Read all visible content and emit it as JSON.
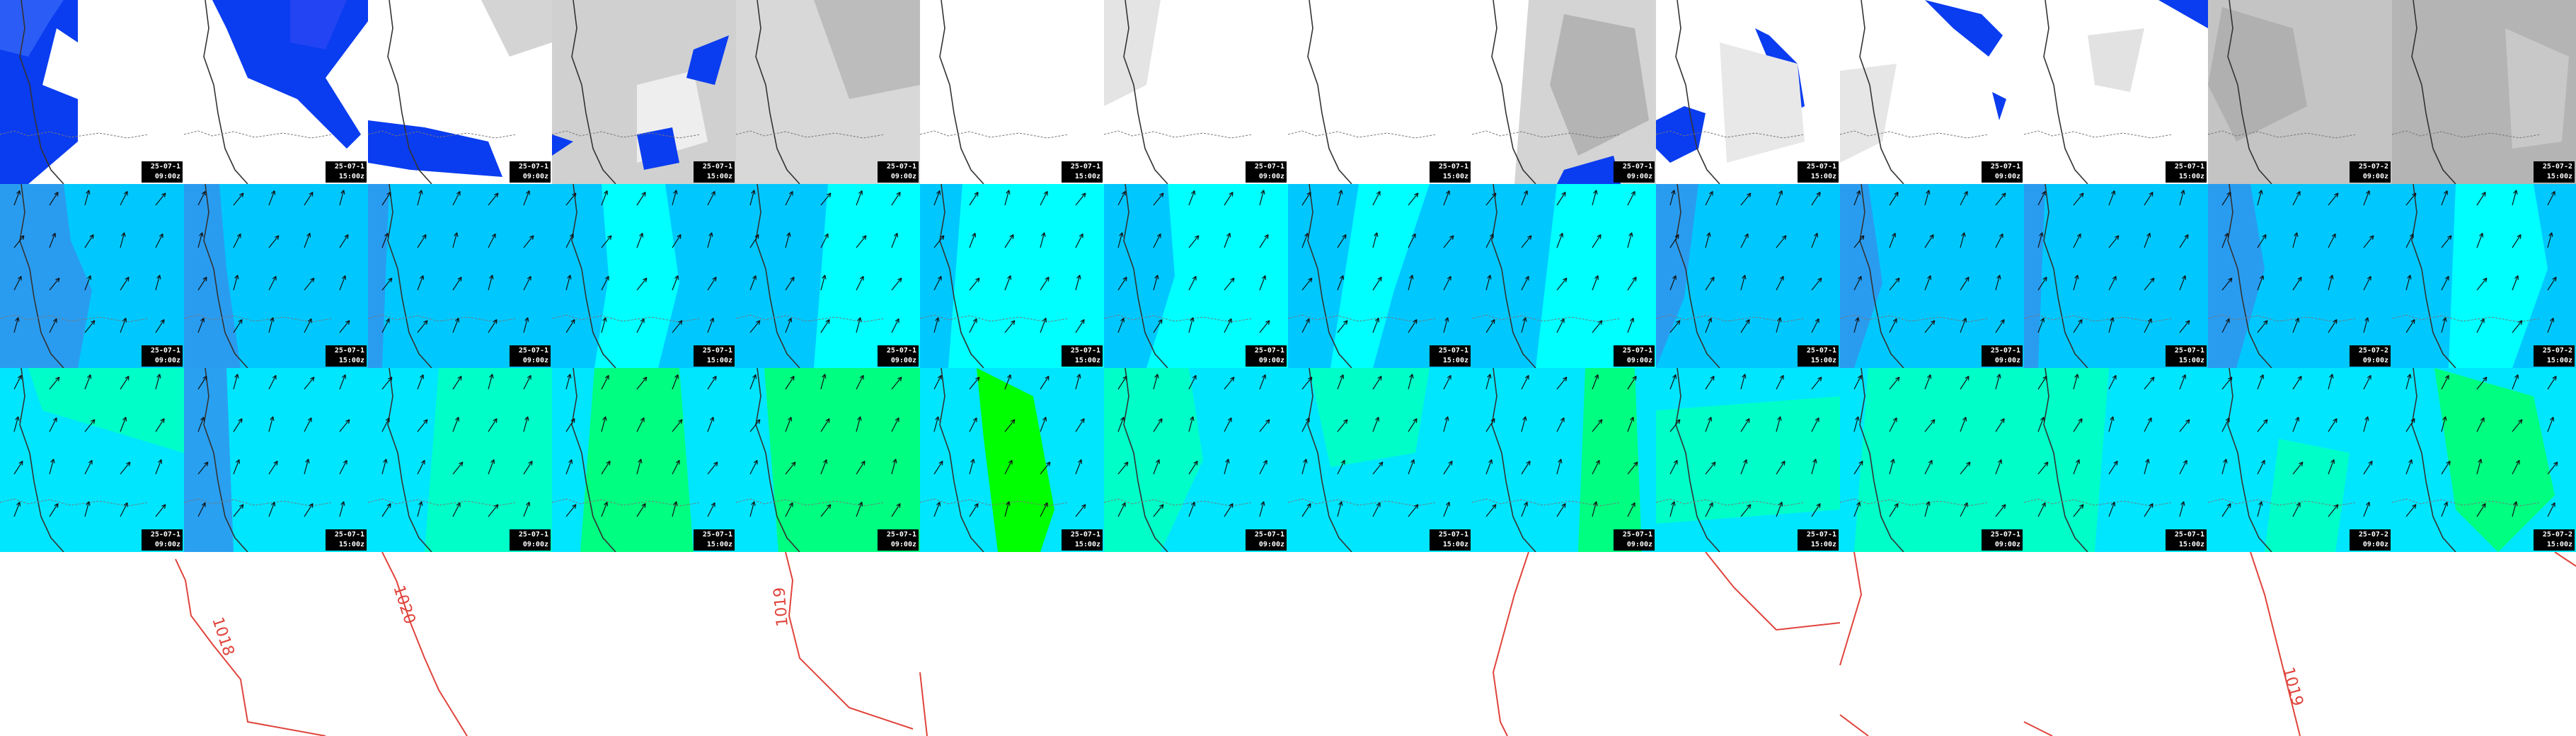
{
  "panel_rows": [
    {
      "name": "precipitation-cloud",
      "palette": [
        "#ffffff",
        "#d8d8d8",
        "#b4b4b4",
        "#0a3cf0"
      ]
    },
    {
      "name": "wind-speed-lower",
      "palette": [
        "#00c8ff",
        "#2aa0f0",
        "#00ffff"
      ]
    },
    {
      "name": "wind-speed-upper",
      "palette": [
        "#00e6ff",
        "#00ffc8",
        "#00ff80",
        "#00ff00"
      ]
    }
  ],
  "timestamps": [
    {
      "date": "25-07-1",
      "time": "09:00z"
    },
    {
      "date": "25-07-1",
      "time": "15:00z"
    },
    {
      "date": "25-07-1",
      "time": "09:00z"
    },
    {
      "date": "25-07-1",
      "time": "15:00z"
    },
    {
      "date": "25-07-1",
      "time": "09:00z"
    },
    {
      "date": "25-07-1",
      "time": "15:00z"
    },
    {
      "date": "25-07-1",
      "time": "09:00z"
    },
    {
      "date": "25-07-1",
      "time": "15:00z"
    },
    {
      "date": "25-07-1",
      "time": "09:00z"
    },
    {
      "date": "25-07-1",
      "time": "15:00z"
    },
    {
      "date": "25-07-1",
      "time": "09:00z"
    },
    {
      "date": "25-07-1",
      "time": "15:00z"
    },
    {
      "date": "25-07-2",
      "time": "09:00z"
    },
    {
      "date": "25-07-2",
      "time": "15:00z"
    }
  ],
  "isobars": {
    "color": "#e0443c",
    "labels": [
      "1018",
      "1020",
      "1019",
      "1019"
    ]
  },
  "colors": {
    "coastline": "#333333",
    "border": "#777777",
    "arrow": "#111111",
    "stamp_bg": "#000000",
    "stamp_fg": "#ffffff"
  }
}
